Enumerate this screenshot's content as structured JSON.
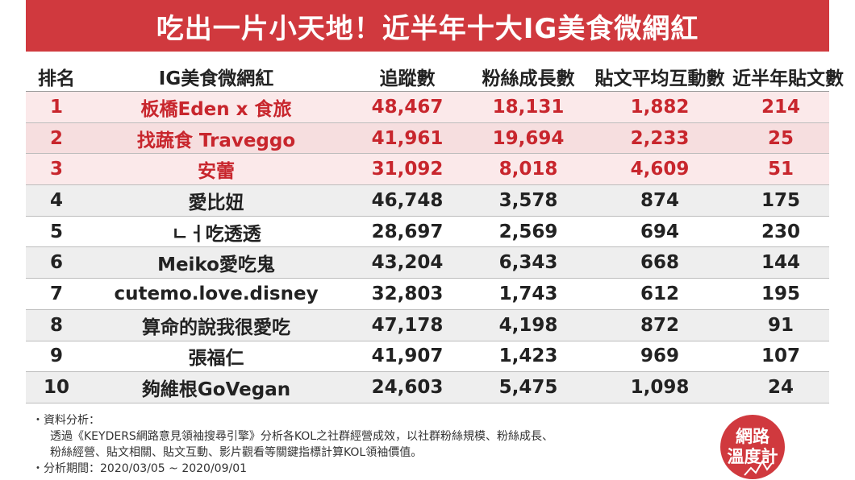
{
  "title": "吃出一片小天地！近半年十大IG美食微網紅",
  "table": {
    "headers": [
      "排名",
      "IG美食微網紅",
      "追蹤數",
      "粉絲成長數",
      "貼文平均互動數",
      "近半年貼文數"
    ],
    "rows": [
      [
        "1",
        "板橋Eden x 食旅",
        "48,467",
        "18,131",
        "1,882",
        "214"
      ],
      [
        "2",
        "找蔬食 Traveggo",
        "41,961",
        "19,694",
        "2,233",
        "25"
      ],
      [
        "3",
        "安蕾",
        "31,092",
        "8,018",
        "4,609",
        "51"
      ],
      [
        "4",
        "愛比妞",
        "46,748",
        "3,578",
        "874",
        "175"
      ],
      [
        "5",
        "ㄴㅓ吃透透",
        "28,697",
        "2,569",
        "694",
        "230"
      ],
      [
        "6",
        "Meiko愛吃鬼",
        "43,204",
        "6,343",
        "668",
        "144"
      ],
      [
        "7",
        "cutemo.love.disney",
        "32,803",
        "1,743",
        "612",
        "195"
      ],
      [
        "8",
        "算命的說我很愛吃",
        "47,178",
        "4,198",
        "872",
        "91"
      ],
      [
        "9",
        "張福仁",
        "41,907",
        "1,423",
        "969",
        "107"
      ],
      [
        "10",
        "夠維根GoVegan",
        "24,603",
        "5,475",
        "1,098",
        "24"
      ]
    ]
  },
  "notes": {
    "line1": "・資料分析：",
    "line2": "透過《KEYDERS網路意見領袖搜尋引擎》分析各KOL之社群經營成效，以社群粉絲規模、粉絲成長、",
    "line3": "粉絲經營、貼文相關、貼文互動、影片觀看等關鍵指標計算KOL領袖價值。",
    "line4": "・分析期間：2020/03/05 ~ 2020/09/01"
  },
  "logo": {
    "line1": "網路",
    "line2": "溫度計"
  },
  "colors": {
    "brand_red": "#d0393e",
    "top3_text": "#c8262d"
  }
}
